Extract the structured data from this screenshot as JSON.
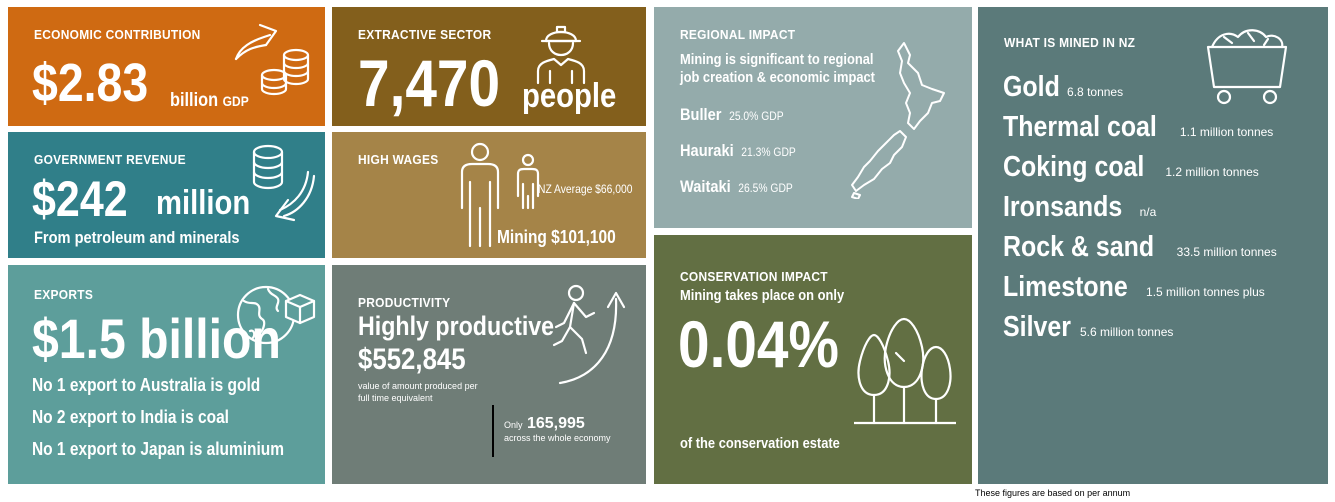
{
  "economic": {
    "heading": "ECONOMIC CONTRIBUTION",
    "value": "$2.83",
    "unit": "billion",
    "suffix": "GDP",
    "icon": "coins-growth-icon"
  },
  "extractive": {
    "heading": "EXTRACTIVE SECTOR",
    "value": "7,470",
    "unit": "people",
    "icon": "miner-icon"
  },
  "government": {
    "heading": "GOVERNMENT REVENUE",
    "value": "$242",
    "unit": "million",
    "caption": "From petroleum and minerals",
    "icon": "coins-return-icon"
  },
  "wages": {
    "heading": "HIGH WAGES",
    "nz_average": "NZ Average $66,000",
    "mining": "Mining $101,100",
    "icon": "people-comparison-icon"
  },
  "exports": {
    "heading": "EXPORTS",
    "value": "$1.5 billion",
    "lines": [
      "No 1 export to Australia is gold",
      "No 2 export to India is coal",
      "No 1 export to Japan is aluminium"
    ],
    "icon": "globe-package-icon"
  },
  "productivity": {
    "heading": "PRODUCTIVITY",
    "title": "Highly productive",
    "value": "$552,845",
    "caption_line1": "value of  amount produced per",
    "caption_line2": "full time equivalent",
    "compare_prefix": "Only",
    "compare_value": "165,995",
    "compare_caption": "across the whole economy",
    "icon": "climbing-person-icon"
  },
  "regional": {
    "heading": "REGIONAL IMPACT",
    "intro_line1": "Mining is significant to regional",
    "intro_line2": "job creation & economic impact",
    "regions": [
      {
        "name": "Buller",
        "value": "25.0% GDP"
      },
      {
        "name": "Hauraki",
        "value": "21.3% GDP"
      },
      {
        "name": "Waitaki",
        "value": "26.5% GDP"
      }
    ],
    "icon": "new-zealand-map-icon"
  },
  "conservation": {
    "heading": "CONSERVATION IMPACT",
    "intro": "Mining takes place on only",
    "value": "0.04%",
    "caption": "of the conservation estate",
    "icon": "trees-icon"
  },
  "mined": {
    "heading": "WHAT IS MINED IN NZ",
    "items": [
      {
        "name": "Gold",
        "qty": "6.8 tonnes"
      },
      {
        "name": "Thermal coal",
        "qty": "1.1 million tonnes"
      },
      {
        "name": "Coking coal",
        "qty": "1.2 million tonnes"
      },
      {
        "name": "Ironsands",
        "qty": "n/a"
      },
      {
        "name": "Rock & sand",
        "qty": "33.5 million tonnes"
      },
      {
        "name": "Limestone",
        "qty": "1.5 million tonnes plus"
      },
      {
        "name": "Silver",
        "qty": "5.6 million tonnes"
      }
    ],
    "icon": "mine-cart-icon"
  },
  "footnote": "These figures are based on per annum",
  "colors": {
    "economic": "#cf6a12",
    "extractive": "#835f1c",
    "government": "#307f89",
    "wages": "#a58448",
    "exports": "#5d9e9b",
    "productivity": "#6f7d77",
    "regional": "#94abab",
    "conservation": "#626f43",
    "mined": "#5b7a7a"
  }
}
